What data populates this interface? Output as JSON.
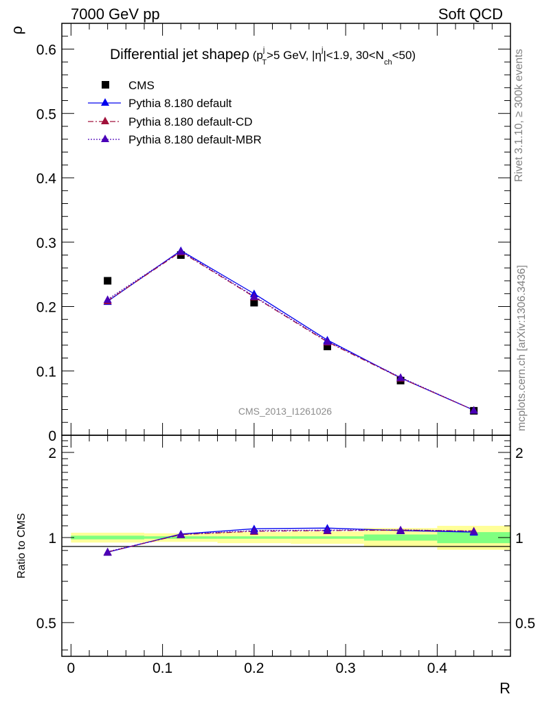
{
  "header": {
    "left": "7000 GeV pp",
    "right": "Soft QCD"
  },
  "side_labels": {
    "rivet": "Rivet 3.1.10, ≥ 300k events",
    "mcplots": "mcplots.cern.ch [arXiv:1306.3436]"
  },
  "watermark": "CMS_2013_I1261026",
  "chart_data": [
    {
      "type": "line",
      "title": "Differential jet shape ρ (p_T^j > 5 GeV, |η^j| < 1.9, 30 < N_ch < 50)",
      "title_parts": {
        "main": "Differential jet shape",
        "rho": "ρ",
        "open": " (p",
        "pt_sup": "j",
        "pt_sub": "T",
        "mid1": ">5 GeV, |η",
        "eta_sup": "j",
        "mid2": "|<1.9, 30<N",
        "nch_sub": "ch",
        "close": "<50)"
      },
      "xlabel": "R",
      "ylabel": "ρ",
      "xlim": [
        -0.01,
        0.48
      ],
      "ylim": [
        0,
        0.64
      ],
      "x_ticks": [
        0,
        0.1,
        0.2,
        0.3,
        0.4
      ],
      "x_tick_labels": [
        "0",
        "0.1",
        "0.2",
        "0.3",
        "0.4"
      ],
      "y_ticks": [
        0,
        0.1,
        0.2,
        0.3,
        0.4,
        0.5,
        0.6
      ],
      "y_tick_labels": [
        "0",
        "0.1",
        "0.2",
        "0.3",
        "0.4",
        "0.5",
        "0.6"
      ],
      "x": [
        0.04,
        0.12,
        0.2,
        0.28,
        0.36,
        0.44
      ],
      "legend_position": "top-left",
      "series": [
        {
          "name": "CMS",
          "style": "marker-square",
          "color": "#000000",
          "values": [
            0.24,
            0.28,
            0.206,
            0.138,
            0.085,
            0.038
          ]
        },
        {
          "name": "Pythia 8.180 default",
          "style": "solid",
          "color": "#0000ee",
          "values": [
            0.208,
            0.287,
            0.22,
            0.148,
            0.089,
            0.039
          ]
        },
        {
          "name": "Pythia 8.180 default-CD",
          "style": "dashdot",
          "color": "#a0103a",
          "values": [
            0.209,
            0.285,
            0.215,
            0.145,
            0.089,
            0.039
          ]
        },
        {
          "name": "Pythia 8.180 default-MBR",
          "style": "dotted",
          "color": "#4a00b8",
          "values": [
            0.211,
            0.286,
            0.216,
            0.146,
            0.09,
            0.039
          ]
        }
      ]
    },
    {
      "type": "line",
      "ylabel": "Ratio to CMS",
      "xlabel": "R",
      "xlim": [
        -0.01,
        0.48
      ],
      "ylim": [
        0.38,
        2.3
      ],
      "y_scale": "log",
      "y_ticks": [
        0.5,
        1,
        2
      ],
      "y_tick_labels": [
        "0.5",
        "1",
        "2"
      ],
      "x": [
        0.04,
        0.12,
        0.2,
        0.28,
        0.36,
        0.44
      ],
      "bin_edges": [
        0.0,
        0.08,
        0.16,
        0.24,
        0.32,
        0.4,
        0.48
      ],
      "band_inner": {
        "color": "#80ff80",
        "low": [
          0.985,
          0.99,
          0.99,
          0.99,
          0.975,
          0.955
        ],
        "high": [
          1.015,
          1.01,
          1.01,
          1.01,
          1.025,
          1.045
        ]
      },
      "band_outer": {
        "color": "#ffff99",
        "low": [
          0.96,
          0.965,
          0.955,
          0.95,
          0.925,
          0.905
        ],
        "high": [
          1.04,
          1.035,
          1.045,
          1.05,
          1.08,
          1.1
        ]
      },
      "series": [
        {
          "name": "Pythia 8.180 default",
          "style": "solid",
          "color": "#0000ee",
          "values": [
            0.887,
            1.029,
            1.074,
            1.08,
            1.058,
            1.045
          ]
        },
        {
          "name": "Pythia 8.180 default-CD",
          "style": "dashdot",
          "color": "#a0103a",
          "values": [
            0.889,
            1.024,
            1.052,
            1.058,
            1.062,
            1.055
          ]
        },
        {
          "name": "Pythia 8.180 default-MBR",
          "style": "dotted",
          "color": "#4a00b8",
          "values": [
            0.891,
            1.026,
            1.058,
            1.062,
            1.065,
            1.053
          ]
        }
      ]
    }
  ]
}
